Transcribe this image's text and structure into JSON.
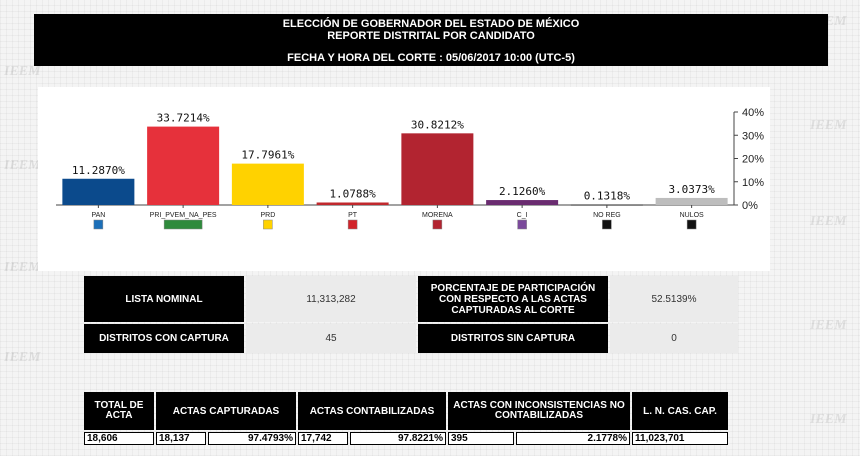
{
  "header": {
    "line1": "ELECCIÓN DE GOBERNADOR DEL ESTADO DE MÉXICO",
    "line2": "REPORTE DISTRITAL POR CANDIDATO",
    "line3": "FECHA Y HORA DEL CORTE : 05/06/2017 10:00 (UTC-5)"
  },
  "watermark": "IEEM",
  "chart_data": {
    "type": "bar",
    "categories": [
      "PAN",
      "PRI_PVEM_NA_PES",
      "PRD",
      "PT",
      "MORENA",
      "C_I",
      "NO REG",
      "NULOS"
    ],
    "values": [
      11.287,
      33.7214,
      17.7961,
      1.0788,
      30.8212,
      2.126,
      0.1318,
      3.0373
    ],
    "value_labels": [
      "11.2870%",
      "33.7214%",
      "17.7961%",
      "1.0788%",
      "30.8212%",
      "2.1260%",
      "0.1318%",
      "3.0373%"
    ],
    "colors": [
      "#0b4a8c",
      "#e6313b",
      "#ffd200",
      "#c0282d",
      "#b22430",
      "#6a2c70",
      "#111111",
      "#bdbdbd"
    ],
    "icon_colors": [
      "#1c6fb8",
      "#2f8a3c",
      "#ffd200",
      "#d2232a",
      "#b22430",
      "#7b4a9b",
      "#111111",
      "#111111"
    ],
    "ylim": [
      0,
      40
    ],
    "yticks": [
      "0%",
      "10%",
      "20%",
      "30%",
      "40%"
    ],
    "title": "",
    "xlabel": "",
    "ylabel": "",
    "grid": false
  },
  "summary": {
    "lista_nominal_label": "LISTA NOMINAL",
    "lista_nominal_value": "11,313,282",
    "participacion_label": "PORCENTAJE DE PARTICIPACIÓN CON RESPECTO A LAS ACTAS CAPTURADAS AL CORTE",
    "participacion_value": "52.5139%",
    "distritos_con_label": "DISTRITOS CON CAPTURA",
    "distritos_con_value": "45",
    "distritos_sin_label": "DISTRITOS SIN CAPTURA",
    "distritos_sin_value": "0"
  },
  "actas": {
    "total_label": "TOTAL DE ACTA",
    "capturadas_label": "ACTAS CAPTURADAS",
    "contabilizadas_label": "ACTAS CONTABILIZADAS",
    "inconsistencias_label": "ACTAS CON INCONSISTENCIAS NO CONTABILIZADAS",
    "ln_label": "L. N. CAS. CAP.",
    "total_value": "18,606",
    "capturadas_value": "18,137",
    "capturadas_pct": "97.4793%",
    "contabilizadas_value": "17,742",
    "contabilizadas_pct": "97.8221%",
    "inconsistencias_value": "395",
    "inconsistencias_pct": "2.1778%",
    "ln_value": "11,023,701"
  }
}
